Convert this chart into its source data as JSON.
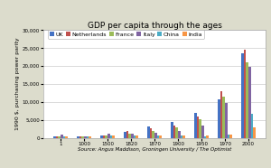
{
  "title": "GDP per capita through the ages",
  "xlabel": "Source: Angus Maddison, Groningen University / The Optimist",
  "ylabel": "1990 $, purchasing power parity",
  "categories": [
    "1",
    "1000",
    "1500",
    "1820",
    "1870",
    "1900",
    "1950",
    "1970",
    "2000"
  ],
  "series": {
    "UK": [
      400,
      400,
      714,
      1706,
      3190,
      4492,
      6907,
      10767,
      23509
    ],
    "Netherlands": [
      425,
      425,
      761,
      1838,
      2757,
      3533,
      5996,
      13082,
      24695
    ],
    "France": [
      473,
      425,
      727,
      1135,
      1876,
      2876,
      5271,
      11410,
      21092
    ],
    "Italy": [
      809,
      450,
      1100,
      1117,
      1499,
      1785,
      3502,
      9719,
      19848
    ],
    "China": [
      450,
      450,
      600,
      600,
      530,
      545,
      448,
      778,
      6604
    ],
    "India": [
      450,
      450,
      550,
      533,
      533,
      599,
      619,
      868,
      2975
    ]
  },
  "colors": {
    "UK": "#4472C4",
    "Netherlands": "#C0504D",
    "France": "#9BBB59",
    "Italy": "#8064A2",
    "China": "#4BACC6",
    "India": "#F79646"
  },
  "ylim": [
    0,
    30000
  ],
  "yticks": [
    0,
    5000,
    10000,
    15000,
    20000,
    25000,
    30000
  ],
  "background_color": "#DCDCCC",
  "plot_bg_color": "#FFFFFF",
  "title_fontsize": 6.5,
  "legend_fontsize": 4.5,
  "ylabel_fontsize": 4.5,
  "xlabel_fontsize": 4.0,
  "tick_fontsize": 4.0
}
